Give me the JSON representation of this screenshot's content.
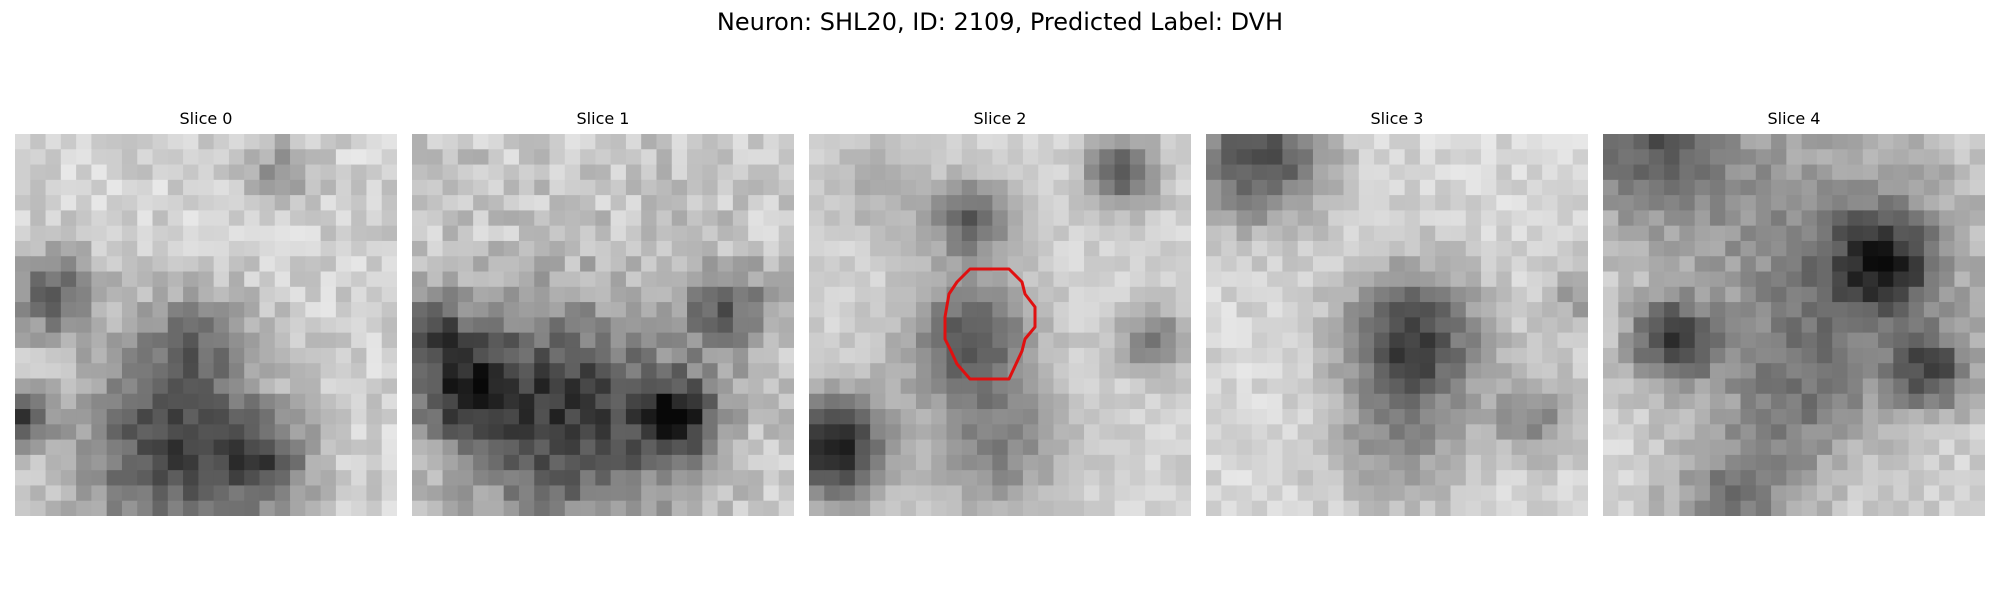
{
  "figure": {
    "title": "Neuron: SHL20, ID: 2109, Predicted Label: DVH"
  },
  "panels": [
    {
      "title": "Slice 0",
      "has_contour": false
    },
    {
      "title": "Slice 1",
      "has_contour": false
    },
    {
      "title": "Slice 2",
      "has_contour": true
    },
    {
      "title": "Slice 3",
      "has_contour": false
    },
    {
      "title": "Slice 4",
      "has_contour": false
    }
  ],
  "colors": {
    "contour": "#e01010",
    "background": "#ffffff"
  }
}
